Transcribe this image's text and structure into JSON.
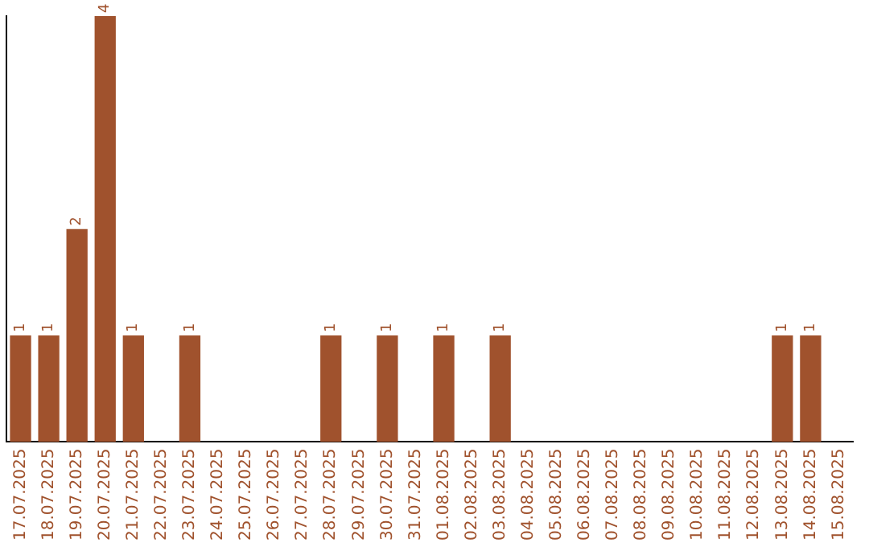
{
  "chart_data": {
    "type": "bar",
    "categories": [
      "17.07.2025",
      "18.07.2025",
      "19.07.2025",
      "20.07.2025",
      "21.07.2025",
      "22.07.2025",
      "23.07.2025",
      "24.07.2025",
      "25.07.2025",
      "26.07.2025",
      "27.07.2025",
      "28.07.2025",
      "29.07.2025",
      "30.07.2025",
      "31.07.2025",
      "01.08.2025",
      "02.08.2025",
      "03.08.2025",
      "04.08.2025",
      "05.08.2025",
      "06.08.2025",
      "07.08.2025",
      "08.08.2025",
      "09.08.2025",
      "10.08.2025",
      "11.08.2025",
      "12.08.2025",
      "13.08.2025",
      "14.08.2025",
      "15.08.2025"
    ],
    "values": [
      1,
      1,
      2,
      4,
      1,
      0,
      1,
      0,
      0,
      0,
      0,
      1,
      0,
      1,
      0,
      1,
      0,
      1,
      0,
      0,
      0,
      0,
      0,
      0,
      0,
      0,
      0,
      1,
      1,
      0
    ],
    "value_labels": [
      "1",
      "1",
      "2",
      "4",
      "1",
      null,
      "1",
      null,
      null,
      null,
      null,
      "1",
      null,
      "1",
      null,
      "1",
      null,
      "1",
      null,
      null,
      null,
      null,
      null,
      null,
      null,
      null,
      null,
      "1",
      "1",
      null
    ],
    "color": "#a0522d",
    "grid": false,
    "legend": false,
    "tick_labels": "x"
  }
}
